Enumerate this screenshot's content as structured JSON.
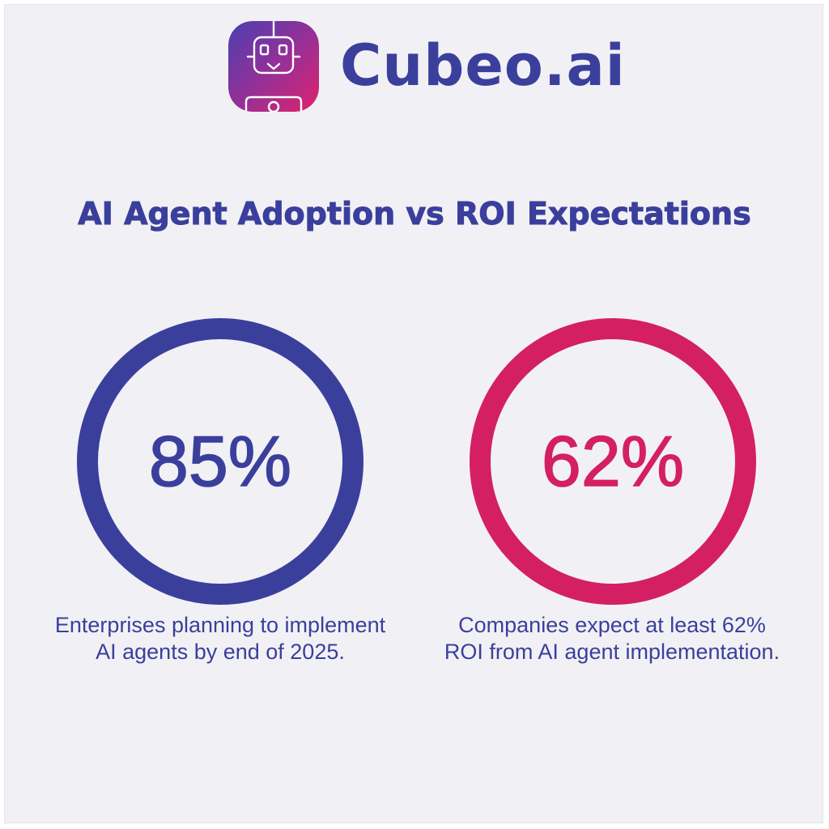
{
  "brand": {
    "name": "Cubeo.ai",
    "logo_icon": "robot-icon",
    "colors": {
      "primary": "#3b3f9c",
      "accent": "#d41f64"
    }
  },
  "title": "AI Agent Adoption vs ROI Expectations",
  "stats": [
    {
      "value": "85%",
      "caption": "Enterprises planning to implement AI agents by end of 2025.",
      "color": "#3b3f9c"
    },
    {
      "value": "62%",
      "caption": "Companies expect at least 62% ROI from AI agent implementation.",
      "color": "#d41f64"
    }
  ]
}
